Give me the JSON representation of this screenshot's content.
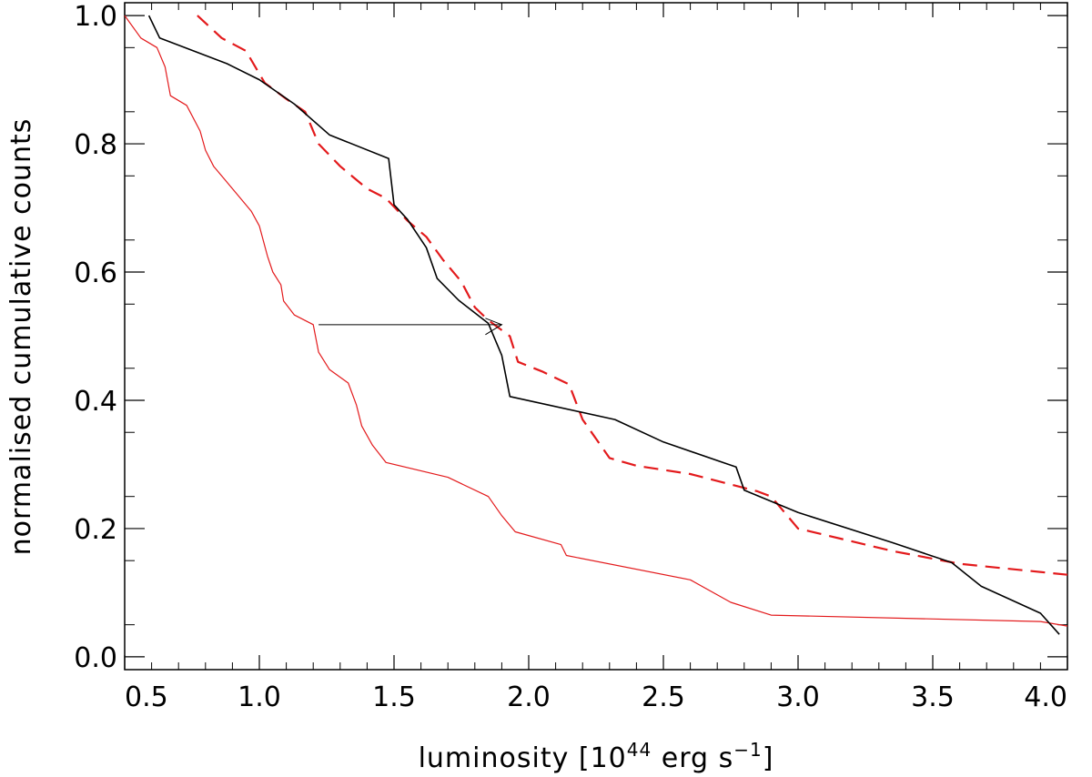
{
  "chart_data": {
    "type": "line",
    "title": "",
    "xlabel": {
      "prefix": "luminosity [10",
      "exp1": "44",
      "middle": " erg s",
      "exp2": "−1",
      "suffix": "]"
    },
    "ylabel": "normalised cumulative counts",
    "xlim": [
      0.5,
      4.0
    ],
    "ylim": [
      -0.02,
      1.02
    ],
    "x_ticks": [
      "0.5",
      "1.0",
      "1.5",
      "2.0",
      "2.5",
      "3.0",
      "3.5",
      "4.0"
    ],
    "y_ticks": [
      "0.0",
      "0.2",
      "0.4",
      "0.6",
      "0.8",
      "1.0"
    ],
    "grid": false,
    "legend": "none",
    "series": [
      {
        "style": "solid-thin",
        "color": "#e31a1c",
        "points": [
          [
            0.5,
            1.0
          ],
          [
            0.56,
            0.965
          ],
          [
            0.62,
            0.95
          ],
          [
            0.65,
            0.92
          ],
          [
            0.67,
            0.875
          ],
          [
            0.73,
            0.86
          ],
          [
            0.78,
            0.82
          ],
          [
            0.8,
            0.79
          ],
          [
            0.83,
            0.765
          ],
          [
            0.87,
            0.745
          ],
          [
            0.9,
            0.73
          ],
          [
            0.93,
            0.715
          ],
          [
            0.97,
            0.695
          ],
          [
            1.0,
            0.672
          ],
          [
            1.03,
            0.625
          ],
          [
            1.05,
            0.6
          ],
          [
            1.08,
            0.58
          ],
          [
            1.09,
            0.555
          ],
          [
            1.13,
            0.533
          ],
          [
            1.2,
            0.518
          ],
          [
            1.22,
            0.475
          ],
          [
            1.26,
            0.448
          ],
          [
            1.33,
            0.427
          ],
          [
            1.36,
            0.393
          ],
          [
            1.38,
            0.36
          ],
          [
            1.42,
            0.33
          ],
          [
            1.47,
            0.303
          ],
          [
            1.7,
            0.28
          ],
          [
            1.85,
            0.25
          ],
          [
            1.9,
            0.22
          ],
          [
            1.95,
            0.195
          ],
          [
            2.12,
            0.175
          ],
          [
            2.14,
            0.158
          ],
          [
            2.6,
            0.12
          ],
          [
            2.75,
            0.085
          ],
          [
            2.9,
            0.065
          ],
          [
            3.9,
            0.055
          ],
          [
            4.0,
            0.048
          ]
        ]
      },
      {
        "style": "dashed",
        "color": "#e31a1c",
        "points": [
          [
            0.77,
            1.0
          ],
          [
            0.86,
            0.965
          ],
          [
            0.95,
            0.945
          ],
          [
            1.02,
            0.895
          ],
          [
            1.1,
            0.87
          ],
          [
            1.17,
            0.85
          ],
          [
            1.22,
            0.8
          ],
          [
            1.3,
            0.765
          ],
          [
            1.4,
            0.73
          ],
          [
            1.47,
            0.715
          ],
          [
            1.55,
            0.68
          ],
          [
            1.62,
            0.655
          ],
          [
            1.68,
            0.62
          ],
          [
            1.75,
            0.585
          ],
          [
            1.8,
            0.545
          ],
          [
            1.85,
            0.525
          ],
          [
            1.93,
            0.5
          ],
          [
            1.96,
            0.46
          ],
          [
            2.05,
            0.445
          ],
          [
            2.15,
            0.425
          ],
          [
            2.2,
            0.37
          ],
          [
            2.25,
            0.34
          ],
          [
            2.3,
            0.31
          ],
          [
            2.4,
            0.298
          ],
          [
            2.6,
            0.285
          ],
          [
            2.85,
            0.258
          ],
          [
            2.9,
            0.25
          ],
          [
            3.0,
            0.2
          ],
          [
            3.35,
            0.165
          ],
          [
            3.6,
            0.145
          ],
          [
            4.0,
            0.128
          ]
        ]
      },
      {
        "style": "solid",
        "color": "#000000",
        "points": [
          [
            0.59,
            1.0
          ],
          [
            0.63,
            0.965
          ],
          [
            0.88,
            0.925
          ],
          [
            1.0,
            0.9
          ],
          [
            1.13,
            0.862
          ],
          [
            1.26,
            0.814
          ],
          [
            1.48,
            0.777
          ],
          [
            1.5,
            0.705
          ],
          [
            1.55,
            0.682
          ],
          [
            1.62,
            0.638
          ],
          [
            1.66,
            0.59
          ],
          [
            1.74,
            0.556
          ],
          [
            1.85,
            0.52
          ],
          [
            1.9,
            0.47
          ],
          [
            1.93,
            0.406
          ],
          [
            2.32,
            0.37
          ],
          [
            2.5,
            0.335
          ],
          [
            2.77,
            0.296
          ],
          [
            2.8,
            0.26
          ],
          [
            3.0,
            0.225
          ],
          [
            3.35,
            0.178
          ],
          [
            3.57,
            0.147
          ],
          [
            3.68,
            0.11
          ],
          [
            3.9,
            0.068
          ],
          [
            3.97,
            0.035
          ]
        ]
      }
    ],
    "annotations": [
      {
        "type": "arrow",
        "from": [
          1.22,
          0.518
        ],
        "to": [
          1.9,
          0.518
        ],
        "color": "#000000"
      }
    ]
  }
}
